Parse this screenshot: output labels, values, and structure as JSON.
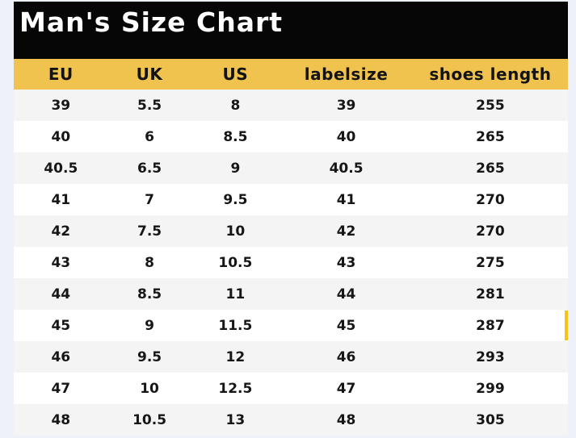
{
  "page": {
    "background_color": "#eff1f8"
  },
  "title_bar": {
    "title": "Man's Size Chart",
    "background_color": "#060606",
    "text_color": "#ffffff"
  },
  "table_style": {
    "header_background_color": "#f0c24e",
    "row_alt_background_color": "#f4f4f5",
    "row_background_color": "#ffffff",
    "marker_color": "#f6c513"
  },
  "chart_data": {
    "type": "table",
    "title": "Man's Size Chart",
    "columns": [
      "EU",
      "UK",
      "US",
      "labelsize",
      "shoes length"
    ],
    "rows": [
      [
        "39",
        "5.5",
        "8",
        "39",
        "255"
      ],
      [
        "40",
        "6",
        "8.5",
        "40",
        "265"
      ],
      [
        "40.5",
        "6.5",
        "9",
        "40.5",
        "265"
      ],
      [
        "41",
        "7",
        "9.5",
        "41",
        "270"
      ],
      [
        "42",
        "7.5",
        "10",
        "42",
        "270"
      ],
      [
        "43",
        "8",
        "10.5",
        "43",
        "275"
      ],
      [
        "44",
        "8.5",
        "11",
        "44",
        "281"
      ],
      [
        "45",
        "9",
        "11.5",
        "45",
        "287"
      ],
      [
        "46",
        "9.5",
        "12",
        "46",
        "293"
      ],
      [
        "47",
        "10",
        "12.5",
        "47",
        "299"
      ],
      [
        "48",
        "10.5",
        "13",
        "48",
        "305"
      ]
    ]
  }
}
